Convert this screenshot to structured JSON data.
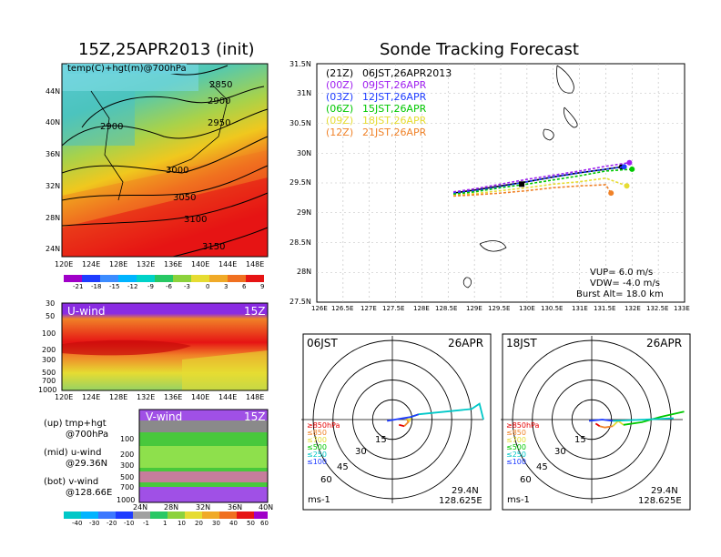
{
  "left_title": "15Z,25APR2013 (init)",
  "right_title": "Sonde Tracking Forecast",
  "map_panel": {
    "label": "temp(C)+hgt(m)@700hPa",
    "contours": [
      "2850",
      "2900",
      "2900",
      "2950",
      "3000",
      "3050",
      "3100",
      "3150"
    ],
    "lat_ticks": [
      "44N",
      "40N",
      "36N",
      "32N",
      "28N",
      "24N"
    ],
    "lon_ticks": [
      "120E",
      "124E",
      "128E",
      "132E",
      "136E",
      "140E",
      "144E",
      "148E"
    ],
    "colorbar": [
      "-21",
      "-18",
      "-15",
      "-12",
      "-9",
      "-6",
      "-3",
      "0",
      "3",
      "6",
      "9"
    ]
  },
  "u_panel": {
    "label": "U-wind",
    "time": "15Z",
    "p_ticks": [
      "30",
      "50",
      "100",
      "200",
      "300",
      "500",
      "700",
      "1000"
    ],
    "lon_ticks": [
      "120E",
      "124E",
      "128E",
      "132E",
      "136E",
      "140E",
      "144E",
      "148E"
    ]
  },
  "v_panel": {
    "label": "V-wind",
    "time": "15Z",
    "p_ticks": [
      "100",
      "200",
      "300",
      "500",
      "700",
      "1000"
    ],
    "lat_ticks": [
      "24N",
      "28N",
      "32N",
      "36N",
      "40N"
    ]
  },
  "legend_notes": [
    {
      "a": "(up) tmp+hgt",
      "b": "@700hPa"
    },
    {
      "a": "(mid) u-wind",
      "b": "@29.36N"
    },
    {
      "a": "(bot) v-wind",
      "b": "@128.66E"
    }
  ],
  "wind_colorbar": [
    "-40",
    "-30",
    "-20",
    "-10",
    "-1",
    "1",
    "10",
    "20",
    "30",
    "40",
    "50",
    "60"
  ],
  "track_panel": {
    "lat_ticks": [
      "31.5N",
      "31N",
      "30.5N",
      "30N",
      "29.5N",
      "29N",
      "28.5N",
      "28N",
      "27.5N"
    ],
    "lon_ticks": [
      "126E",
      "126.5E",
      "127E",
      "127.5E",
      "128E",
      "128.5E",
      "129E",
      "129.5E",
      "130E",
      "130.5E",
      "131E",
      "131.5E",
      "132E",
      "132.5E",
      "133E"
    ],
    "legend": [
      {
        "z": "(21Z)",
        "t": "06JST,26APR2013",
        "color": "#000000"
      },
      {
        "z": "(00Z)",
        "t": "09JST,26APR",
        "color": "#a020f0"
      },
      {
        "z": "(03Z)",
        "t": "12JST,26APR",
        "color": "#1e3cff"
      },
      {
        "z": "(06Z)",
        "t": "15JST,26APR",
        "color": "#00c800"
      },
      {
        "z": "(09Z)",
        "t": "18JST,26APR",
        "color": "#e6dc32"
      },
      {
        "z": "(12Z)",
        "t": "21JST,26APR",
        "color": "#f08228"
      }
    ],
    "params": [
      "VUP=  6.0  m/s",
      "VDW= -4.0  m/s",
      "Burst Alt=  18.0  km"
    ]
  },
  "hodo_left": {
    "time": "06JST",
    "date": "26APR",
    "rings": [
      "15",
      "30",
      "45",
      "60"
    ],
    "loc1": "29.4N",
    "loc2": "128.625E",
    "unit": "ms-1",
    "levels": [
      "≥850hPa",
      "≤850",
      "≤700",
      "≤500",
      "≤250",
      "≤100"
    ]
  },
  "hodo_right": {
    "time": "18JST",
    "date": "26APR",
    "rings": [
      "15",
      "30",
      "45",
      "60"
    ],
    "loc1": "29.4N",
    "loc2": "128.625E",
    "unit": "ms-1",
    "levels": [
      "≥850hPa",
      "≤850",
      "≤700",
      "≤500",
      "≤250",
      "≤100"
    ]
  },
  "colors": {
    "hgt_contour": "#000000",
    "level_colors": [
      "#e60000",
      "#f08228",
      "#e6dc32",
      "#00c800",
      "#00c8c8",
      "#1e3cff"
    ]
  },
  "chart_data": [
    {
      "type": "line",
      "title": "Sonde Tracking Forecast",
      "xlim": [
        126,
        133
      ],
      "ylim": [
        27.5,
        31.5
      ],
      "launch": [
        129.9,
        29.48
      ],
      "series": [
        {
          "name": "(21Z) 06JST,26APR2013",
          "x": [
            128.6,
            129.0,
            129.5,
            130.0,
            130.5,
            131.0,
            131.5,
            131.8
          ],
          "y": [
            29.33,
            29.38,
            29.45,
            29.52,
            29.6,
            29.67,
            29.73,
            29.77
          ]
        },
        {
          "name": "(00Z) 09JST,26APR",
          "x": [
            128.6,
            129.0,
            129.5,
            130.0,
            130.5,
            131.0,
            131.5,
            131.95
          ],
          "y": [
            29.35,
            29.4,
            29.48,
            29.56,
            29.63,
            29.7,
            29.78,
            29.84
          ]
        },
        {
          "name": "(03Z) 12JST,26APR",
          "x": [
            128.6,
            129.0,
            129.5,
            130.0,
            130.5,
            131.0,
            131.5,
            131.85
          ],
          "y": [
            29.33,
            29.37,
            29.44,
            29.52,
            29.6,
            29.67,
            29.73,
            29.77
          ]
        },
        {
          "name": "(06Z) 15JST,26APR",
          "x": [
            128.6,
            129.0,
            129.5,
            130.0,
            130.5,
            131.0,
            131.5,
            132.0
          ],
          "y": [
            29.31,
            29.35,
            29.42,
            29.48,
            29.55,
            29.62,
            29.7,
            29.73
          ]
        },
        {
          "name": "(09Z) 18JST,26APR",
          "x": [
            128.6,
            129.0,
            129.5,
            130.0,
            130.5,
            131.0,
            131.5,
            131.9
          ],
          "y": [
            29.29,
            29.32,
            29.37,
            29.42,
            29.48,
            29.52,
            29.58,
            29.45
          ]
        },
        {
          "name": "(12Z) 21JST,26APR",
          "x": [
            128.6,
            129.0,
            129.5,
            130.0,
            130.5,
            131.0,
            131.5,
            131.6
          ],
          "y": [
            29.28,
            29.3,
            29.33,
            29.37,
            29.42,
            29.45,
            29.47,
            29.33
          ]
        }
      ]
    },
    {
      "type": "line",
      "title": "06JST 26APR",
      "rings": [
        15,
        30,
        45,
        60
      ],
      "segments": [
        {
          "level": "≥850hPa",
          "u": [
            5,
            9
          ],
          "v": [
            -4,
            -5
          ]
        },
        {
          "level": "≤850",
          "u": [
            9,
            12,
            11
          ],
          "v": [
            -5,
            -2,
            1
          ]
        },
        {
          "level": "≤700",
          "u": [
            11,
            13,
            14
          ],
          "v": [
            1,
            -1,
            2
          ]
        },
        {
          "level": "≤500",
          "u": [
            14,
            20
          ],
          "v": [
            2,
            4
          ]
        },
        {
          "level": "≤100",
          "u": [
            -4,
            2,
            8,
            14,
            20
          ],
          "v": [
            -1,
            0,
            1,
            2,
            4
          ]
        },
        {
          "level": "≤250",
          "u": [
            20,
            40,
            60,
            66,
            69
          ],
          "v": [
            4,
            6,
            8,
            12,
            0
          ]
        }
      ]
    },
    {
      "type": "line",
      "title": "18JST 26APR",
      "rings": [
        15,
        30,
        45,
        60
      ],
      "segments": [
        {
          "level": "≥850hPa",
          "u": [
            3,
            6
          ],
          "v": [
            -3,
            -5
          ]
        },
        {
          "level": "≤850",
          "u": [
            6,
            10,
            16
          ],
          "v": [
            -5,
            -6,
            -5
          ]
        },
        {
          "level": "≤700",
          "u": [
            16,
            20,
            24
          ],
          "v": [
            -5,
            -1,
            -4
          ]
        },
        {
          "level": "≤500",
          "u": [
            24,
            38,
            52,
            70
          ],
          "v": [
            -4,
            -2,
            2,
            6
          ]
        },
        {
          "level": "≤100",
          "u": [
            -2,
            8,
            16
          ],
          "v": [
            -1,
            0,
            -1
          ]
        },
        {
          "level": "≤250",
          "u": [
            16,
            40,
            62
          ],
          "v": [
            -1,
            0,
            1
          ]
        }
      ]
    }
  ]
}
